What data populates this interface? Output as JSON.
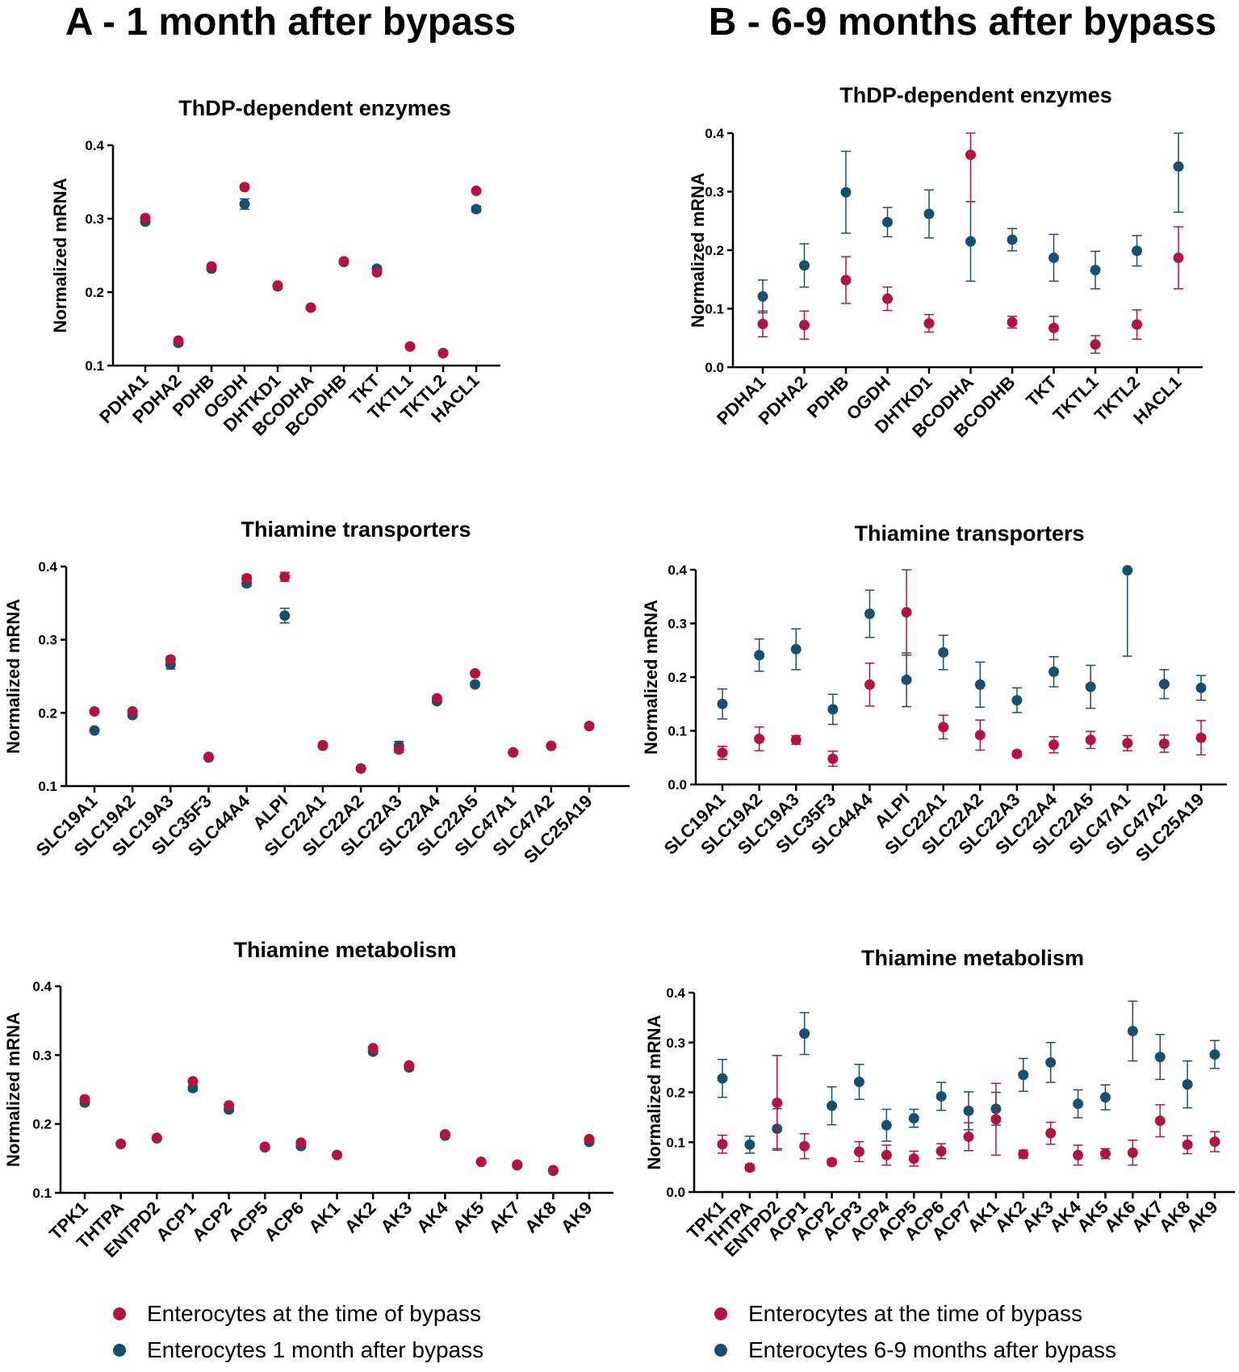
{
  "panel_a": {
    "title": "A - 1 month after bypass"
  },
  "panel_b": {
    "title": "B - 6-9 months after bypass"
  },
  "legend_a": [
    {
      "label": "Enterocytes at the time of bypass",
      "color": "#b5133f"
    },
    {
      "label": "Enterocytes 1 month after bypass",
      "color": "#17506e"
    }
  ],
  "legend_b": [
    {
      "label": "Enterocytes at the time of bypass",
      "color": "#b5133f"
    },
    {
      "label": "Enterocytes 6-9 months after bypass",
      "color": "#17506e"
    }
  ],
  "colors": {
    "red": "#b5133f",
    "blue": "#17506e"
  },
  "chart_data": [
    {
      "id": "A-enzymes",
      "panel": "A",
      "type": "scatter",
      "title": "ThDP-dependent enzymes",
      "ylabel": "Normalized mRNA",
      "ylim": [
        0.1,
        0.4
      ],
      "yticks": [
        0.1,
        0.2,
        0.3,
        0.4
      ],
      "ytick_labels": [
        "0.1",
        "0.2",
        "0.3",
        "0.4"
      ],
      "categories": [
        "PDHA1",
        "PDHA2",
        "PDHB",
        "OGDH",
        "DHTKD1",
        "BCODHA",
        "BCODHB",
        "TKT",
        "TKTL1",
        "TKTL2",
        "HACL1"
      ],
      "series": [
        {
          "name": "Enterocytes at the time of bypass",
          "color": "#b5133f",
          "values": [
            0.301,
            0.134,
            0.235,
            0.343,
            0.209,
            0.179,
            0.242,
            0.227,
            0.126,
            0.117,
            0.338
          ],
          "error": [
            0,
            0,
            0,
            0,
            0,
            0,
            0,
            0,
            0,
            0,
            0
          ]
        },
        {
          "name": "Enterocytes 1 month after bypass",
          "color": "#17506e",
          "values": [
            0.296,
            0.131,
            0.232,
            0.32,
            0.208,
            0.179,
            0.241,
            0.232,
            0.126,
            0.117,
            0.313
          ],
          "error": [
            0.003,
            0.003,
            0.003,
            0.007,
            0.003,
            0.002,
            0.002,
            0.003,
            0.002,
            0.002,
            0.004
          ]
        }
      ]
    },
    {
      "id": "B-enzymes",
      "panel": "B",
      "type": "scatter",
      "title": "ThDP-dependent enzymes",
      "ylabel": "Normalized mRNA",
      "ylim": [
        0.0,
        0.4
      ],
      "yticks": [
        0.0,
        0.1,
        0.2,
        0.3,
        0.4
      ],
      "ytick_labels": [
        "0.0",
        "0.1",
        "0.2",
        "0.3",
        "0.4"
      ],
      "categories": [
        "PDHA1",
        "PDHA2",
        "PDHB",
        "OGDH",
        "DHTKD1",
        "BCODHA",
        "BCODHB",
        "TKT",
        "TKTL1",
        "TKTL2",
        "HACL1"
      ],
      "series": [
        {
          "name": "Enterocytes at the time of bypass",
          "color": "#b5133f",
          "values": [
            0.074,
            0.072,
            0.149,
            0.117,
            0.075,
            0.363,
            0.077,
            0.067,
            0.039,
            0.073,
            0.187
          ],
          "error": [
            0.022,
            0.024,
            0.04,
            0.02,
            0.015,
            0.08,
            0.01,
            0.02,
            0.015,
            0.025,
            0.053
          ]
        },
        {
          "name": "Enterocytes 6-9 months after bypass",
          "color": "#17506e",
          "values": [
            0.121,
            0.174,
            0.299,
            0.248,
            0.262,
            0.215,
            0.218,
            0.187,
            0.166,
            0.199,
            0.343
          ],
          "error": [
            0.028,
            0.037,
            0.07,
            0.025,
            0.041,
            0.068,
            0.019,
            0.04,
            0.032,
            0.026,
            0.078
          ]
        }
      ]
    },
    {
      "id": "A-transporters",
      "panel": "A",
      "type": "scatter",
      "title": "Thiamine transporters",
      "ylabel": "Normalized mRNA",
      "ylim": [
        0.1,
        0.4
      ],
      "yticks": [
        0.1,
        0.2,
        0.3,
        0.4
      ],
      "ytick_labels": [
        "0.1",
        "0.2",
        "0.3",
        "0.4"
      ],
      "categories": [
        "SLC19A1",
        "SLC19A2",
        "SLC19A3",
        "SLC35F3",
        "SLC44A4",
        "ALPI",
        "SLC22A1",
        "SLC22A2",
        "SLC22A3",
        "SLC22A4",
        "SLC22A5",
        "SLC47A1",
        "SLC47A2",
        "SLC25A19"
      ],
      "series": [
        {
          "name": "Enterocytes at the time of bypass",
          "color": "#b5133f",
          "values": [
            0.202,
            0.202,
            0.273,
            0.14,
            0.384,
            0.386,
            0.156,
            0.124,
            0.15,
            0.22,
            0.254,
            0.146,
            0.155,
            0.182
          ],
          "error": [
            0,
            0,
            0.004,
            0,
            0.004,
            0.006,
            0,
            0,
            0.004,
            0,
            0,
            0,
            0,
            0
          ]
        },
        {
          "name": "Enterocytes 1 month after bypass",
          "color": "#17506e",
          "values": [
            0.176,
            0.197,
            0.266,
            0.139,
            0.377,
            0.333,
            0.155,
            0.124,
            0.155,
            0.216,
            0.239,
            0.146,
            0.155,
            0.182
          ],
          "error": [
            0.002,
            0.003,
            0.006,
            0.002,
            0.004,
            0.01,
            0.002,
            0.002,
            0.006,
            0.003,
            0.002,
            0.002,
            0.002,
            0.002
          ]
        }
      ]
    },
    {
      "id": "B-transporters",
      "panel": "B",
      "type": "scatter",
      "title": "Thiamine transporters",
      "ylabel": "Normalized mRNA",
      "ylim": [
        0.0,
        0.4
      ],
      "yticks": [
        0.0,
        0.1,
        0.2,
        0.3,
        0.4
      ],
      "ytick_labels": [
        "0.0",
        "0.1",
        "0.2",
        "0.3",
        "0.4"
      ],
      "categories": [
        "SLC19A1",
        "SLC19A2",
        "SLC19A3",
        "SLC35F3",
        "SLC44A4",
        "ALPI",
        "SLC22A1",
        "SLC22A2",
        "SLC22A3",
        "SLC22A4",
        "SLC22A5",
        "SLC47A1",
        "SLC47A2",
        "SLC25A19"
      ],
      "series": [
        {
          "name": "Enterocytes at the time of bypass",
          "color": "#b5133f",
          "values": [
            0.059,
            0.085,
            0.083,
            0.048,
            0.186,
            0.321,
            0.107,
            0.092,
            0.057,
            0.074,
            0.083,
            0.077,
            0.076,
            0.087
          ],
          "error": [
            0.012,
            0.022,
            0.008,
            0.014,
            0.04,
            0.08,
            0.022,
            0.028,
            0.005,
            0.015,
            0.016,
            0.014,
            0.016,
            0.032
          ]
        },
        {
          "name": "Enterocytes 6-9 months after bypass",
          "color": "#17506e",
          "values": [
            0.15,
            0.241,
            0.252,
            0.14,
            0.318,
            0.195,
            0.246,
            0.186,
            0.157,
            0.21,
            0.182,
            0.399,
            0.187,
            0.18
          ],
          "error": [
            0.028,
            0.03,
            0.038,
            0.028,
            0.044,
            0.05,
            0.032,
            0.042,
            0.023,
            0.028,
            0.04,
            0.16,
            0.027,
            0.023
          ]
        }
      ]
    },
    {
      "id": "A-metabolism",
      "panel": "A",
      "type": "scatter",
      "title": "Thiamine metabolism",
      "ylabel": "Normalized mRNA",
      "ylim": [
        0.1,
        0.4
      ],
      "yticks": [
        0.1,
        0.2,
        0.3,
        0.4
      ],
      "ytick_labels": [
        "0.1",
        "0.2",
        "0.3",
        "0.4"
      ],
      "categories": [
        "TPK1",
        "THTPA",
        "ENTPD2",
        "ACP1",
        "ACP2",
        "ACP5",
        "ACP6",
        "AK1",
        "AK2",
        "AK3",
        "AK4",
        "AK5",
        "AK7",
        "AK8",
        "AK9"
      ],
      "series": [
        {
          "name": "Enterocytes at the time of bypass",
          "color": "#b5133f",
          "values": [
            0.236,
            0.171,
            0.18,
            0.262,
            0.227,
            0.167,
            0.173,
            0.155,
            0.31,
            0.285,
            0.185,
            0.145,
            0.141,
            0.133,
            0.178
          ],
          "error": [
            0,
            0,
            0,
            0,
            0,
            0,
            0,
            0,
            0,
            0,
            0,
            0,
            0,
            0,
            0
          ]
        },
        {
          "name": "Enterocytes 1 month after bypass",
          "color": "#17506e",
          "values": [
            0.231,
            0.171,
            0.179,
            0.252,
            0.221,
            0.166,
            0.168,
            0.155,
            0.305,
            0.282,
            0.183,
            0.145,
            0.14,
            0.132,
            0.174
          ],
          "error": [
            0.003,
            0.002,
            0.002,
            0.004,
            0.003,
            0.002,
            0.003,
            0.002,
            0.003,
            0.003,
            0.002,
            0.002,
            0.002,
            0.002,
            0.002
          ]
        }
      ]
    },
    {
      "id": "B-metabolism",
      "panel": "B",
      "type": "scatter",
      "title": "Thiamine metabolism",
      "ylabel": "Normalized mRNA",
      "ylim": [
        0.0,
        0.4
      ],
      "yticks": [
        0.0,
        0.1,
        0.2,
        0.3,
        0.4
      ],
      "ytick_labels": [
        "0.0",
        "0.1",
        "0.2",
        "0.3",
        "0.4"
      ],
      "categories": [
        "TPK1",
        "THTPA",
        "ENTPD2",
        "ACP1",
        "ACP2",
        "ACP3",
        "ACP4",
        "ACP5",
        "ACP6",
        "ACP7",
        "AK1",
        "AK2",
        "AK3",
        "AK4",
        "AK5",
        "AK6",
        "AK7",
        "AK8",
        "AK9"
      ],
      "series": [
        {
          "name": "Enterocytes at the time of bypass",
          "color": "#b5133f",
          "values": [
            0.096,
            0.049,
            0.179,
            0.092,
            0.06,
            0.081,
            0.074,
            0.067,
            0.082,
            0.111,
            0.146,
            0.076,
            0.118,
            0.074,
            0.077,
            0.079,
            0.143,
            0.095,
            0.101
          ],
          "error": [
            0.018,
            0.006,
            0.095,
            0.025,
            0.006,
            0.02,
            0.02,
            0.015,
            0.015,
            0.028,
            0.072,
            0.008,
            0.022,
            0.02,
            0.01,
            0.025,
            0.032,
            0.018,
            0.02
          ]
        },
        {
          "name": "Enterocytes 6-9 months after bypass",
          "color": "#17506e",
          "values": [
            0.228,
            0.095,
            0.127,
            0.318,
            0.173,
            0.221,
            0.134,
            0.148,
            0.192,
            0.163,
            0.167,
            0.235,
            0.26,
            0.177,
            0.19,
            0.323,
            0.271,
            0.216,
            0.276
          ],
          "error": [
            0.038,
            0.017,
            0.04,
            0.042,
            0.038,
            0.035,
            0.032,
            0.018,
            0.028,
            0.038,
            0.033,
            0.033,
            0.04,
            0.028,
            0.025,
            0.06,
            0.045,
            0.047,
            0.028
          ]
        }
      ]
    }
  ]
}
